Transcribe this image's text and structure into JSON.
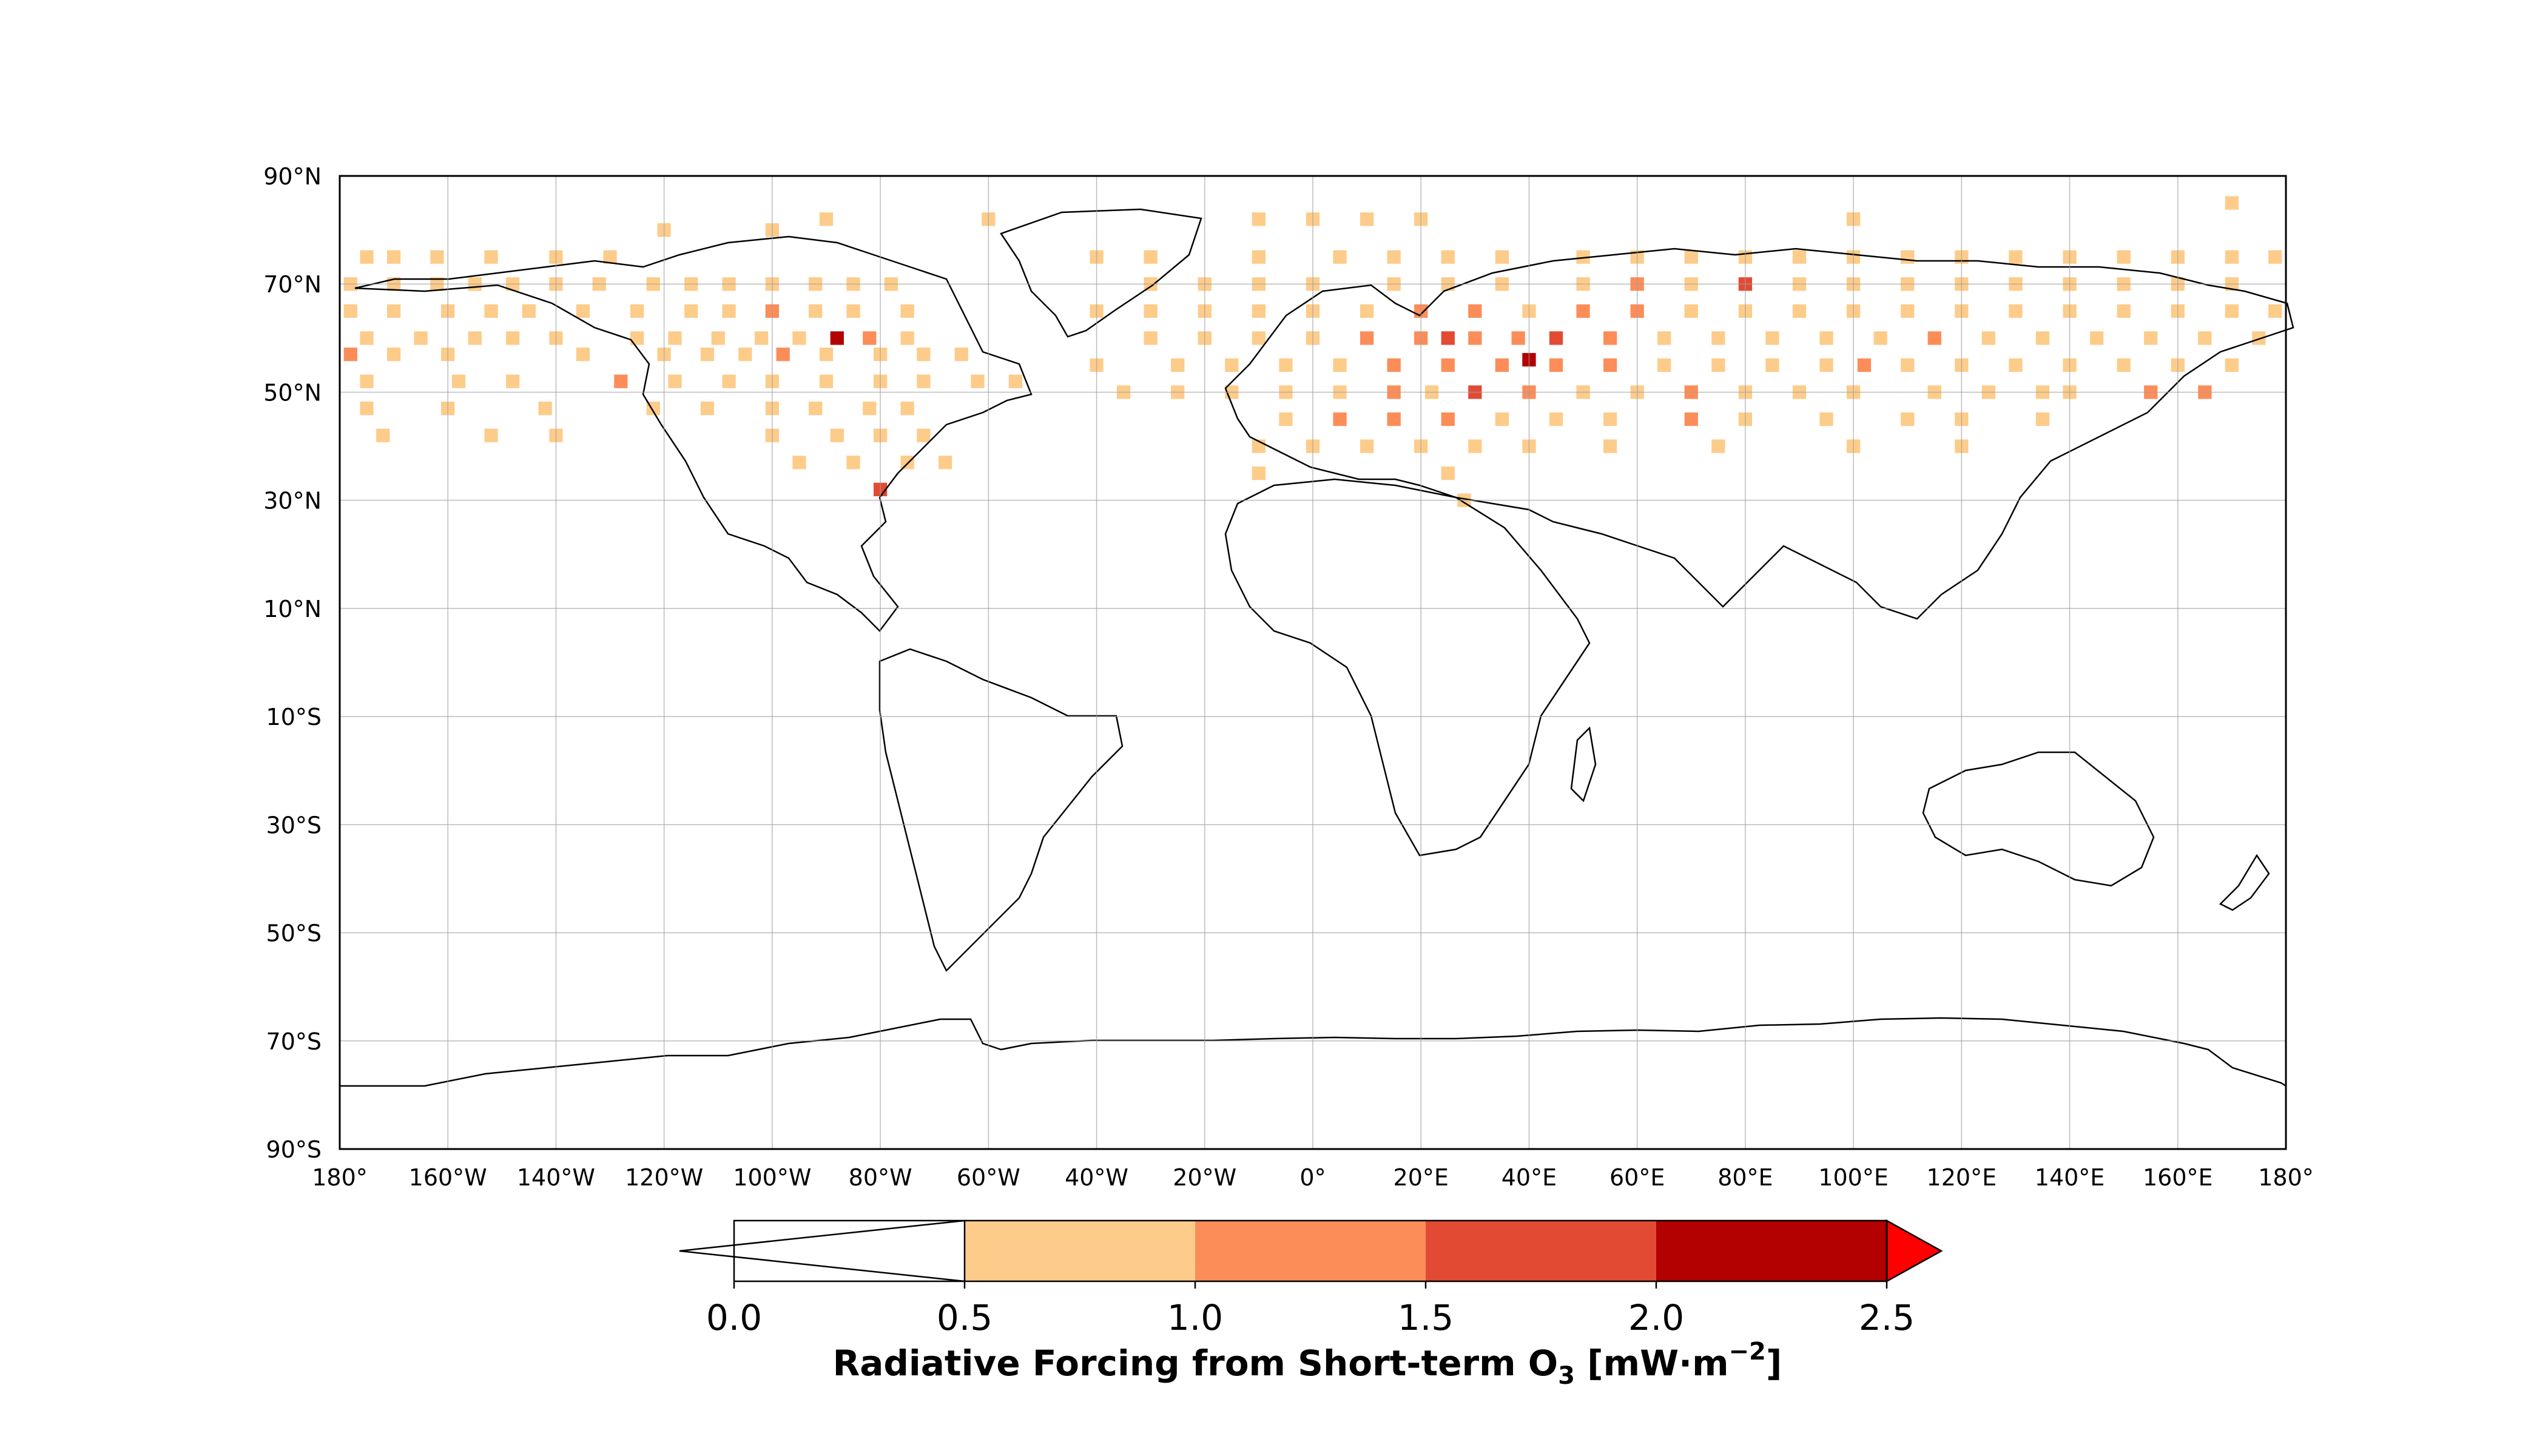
{
  "map": {
    "projection": "PlateCarree",
    "extent": {
      "lon": [
        -180,
        180
      ],
      "lat": [
        -90,
        90
      ]
    },
    "gridlines": true,
    "lat_ticks": [
      {
        "value": 90,
        "label": "90°N"
      },
      {
        "value": 70,
        "label": "70°N"
      },
      {
        "value": 50,
        "label": "50°N"
      },
      {
        "value": 30,
        "label": "30°N"
      },
      {
        "value": 10,
        "label": "10°N"
      },
      {
        "value": -10,
        "label": "10°S"
      },
      {
        "value": -30,
        "label": "30°S"
      },
      {
        "value": -50,
        "label": "50°S"
      },
      {
        "value": -70,
        "label": "70°S"
      },
      {
        "value": -90,
        "label": "90°S"
      }
    ],
    "lon_ticks": [
      {
        "value": -180,
        "label": "180°"
      },
      {
        "value": -160,
        "label": "160°W"
      },
      {
        "value": -140,
        "label": "140°W"
      },
      {
        "value": -120,
        "label": "120°W"
      },
      {
        "value": -100,
        "label": "100°W"
      },
      {
        "value": -80,
        "label": "80°W"
      },
      {
        "value": -60,
        "label": "60°W"
      },
      {
        "value": -40,
        "label": "40°W"
      },
      {
        "value": -20,
        "label": "20°W"
      },
      {
        "value": 0,
        "label": "0°"
      },
      {
        "value": 20,
        "label": "20°E"
      },
      {
        "value": 40,
        "label": "40°E"
      },
      {
        "value": 60,
        "label": "60°E"
      },
      {
        "value": 80,
        "label": "80°E"
      },
      {
        "value": 100,
        "label": "100°E"
      },
      {
        "value": 120,
        "label": "120°E"
      },
      {
        "value": 140,
        "label": "140°E"
      },
      {
        "value": 160,
        "label": "160°E"
      },
      {
        "value": 180,
        "label": "180°"
      }
    ],
    "cell_size_deg": 2.5,
    "field_cells": [
      [
        -175,
        75,
        0.7
      ],
      [
        -170,
        75,
        0.6
      ],
      [
        -162,
        75,
        0.6
      ],
      [
        -152,
        75,
        0.7
      ],
      [
        -140,
        75,
        0.7
      ],
      [
        -130,
        75,
        0.6
      ],
      [
        -178,
        70,
        0.6
      ],
      [
        -170,
        70,
        0.7
      ],
      [
        -162,
        70,
        0.6
      ],
      [
        -155,
        70,
        0.8
      ],
      [
        -148,
        70,
        0.7
      ],
      [
        -140,
        70,
        0.6
      ],
      [
        -132,
        70,
        0.6
      ],
      [
        -122,
        70,
        0.8
      ],
      [
        -115,
        70,
        0.7
      ],
      [
        -108,
        70,
        0.9
      ],
      [
        -100,
        70,
        0.7
      ],
      [
        -92,
        70,
        0.8
      ],
      [
        -85,
        70,
        0.7
      ],
      [
        -78,
        70,
        0.6
      ],
      [
        -178,
        65,
        0.6
      ],
      [
        -170,
        65,
        0.7
      ],
      [
        -160,
        65,
        0.7
      ],
      [
        -152,
        65,
        0.6
      ],
      [
        -145,
        65,
        0.8
      ],
      [
        -135,
        65,
        0.6
      ],
      [
        -125,
        65,
        0.7
      ],
      [
        -115,
        65,
        0.9
      ],
      [
        -108,
        65,
        0.8
      ],
      [
        -100,
        65,
        1.1
      ],
      [
        -92,
        65,
        0.8
      ],
      [
        -85,
        65,
        0.7
      ],
      [
        -75,
        65,
        0.6
      ],
      [
        -175,
        60,
        0.7
      ],
      [
        -165,
        60,
        0.6
      ],
      [
        -155,
        60,
        0.8
      ],
      [
        -148,
        60,
        0.6
      ],
      [
        -140,
        60,
        0.7
      ],
      [
        -125,
        60,
        0.6
      ],
      [
        -118,
        60,
        0.8
      ],
      [
        -110,
        60,
        0.7
      ],
      [
        -102,
        60,
        0.9
      ],
      [
        -95,
        60,
        0.8
      ],
      [
        -88,
        60,
        2.1
      ],
      [
        -82,
        60,
        1.3
      ],
      [
        -75,
        60,
        0.8
      ],
      [
        -178,
        57,
        1.2
      ],
      [
        -170,
        57,
        0.6
      ],
      [
        -160,
        57,
        0.6
      ],
      [
        -135,
        57,
        0.7
      ],
      [
        -120,
        57,
        0.7
      ],
      [
        -112,
        57,
        0.8
      ],
      [
        -105,
        57,
        0.8
      ],
      [
        -98,
        57,
        1.1
      ],
      [
        -90,
        57,
        0.9
      ],
      [
        -80,
        57,
        0.8
      ],
      [
        -72,
        57,
        0.7
      ],
      [
        -65,
        57,
        0.6
      ],
      [
        -175,
        52,
        0.6
      ],
      [
        -158,
        52,
        0.6
      ],
      [
        -148,
        52,
        0.7
      ],
      [
        -128,
        52,
        1.3
      ],
      [
        -118,
        52,
        0.8
      ],
      [
        -108,
        52,
        0.7
      ],
      [
        -100,
        52,
        0.8
      ],
      [
        -90,
        52,
        0.7
      ],
      [
        -80,
        52,
        0.9
      ],
      [
        -72,
        52,
        0.7
      ],
      [
        -62,
        52,
        0.6
      ],
      [
        -55,
        52,
        0.6
      ],
      [
        -175,
        47,
        0.7
      ],
      [
        -160,
        47,
        0.6
      ],
      [
        -142,
        47,
        0.6
      ],
      [
        -122,
        47,
        0.7
      ],
      [
        -112,
        47,
        0.7
      ],
      [
        -100,
        47,
        0.8
      ],
      [
        -92,
        47,
        0.8
      ],
      [
        -82,
        47,
        0.9
      ],
      [
        -75,
        47,
        0.7
      ],
      [
        -172,
        42,
        0.6
      ],
      [
        -152,
        42,
        0.6
      ],
      [
        -140,
        42,
        0.6
      ],
      [
        -100,
        42,
        0.6
      ],
      [
        -88,
        42,
        0.7
      ],
      [
        -80,
        42,
        0.8
      ],
      [
        -72,
        42,
        0.7
      ],
      [
        -95,
        37,
        0.7
      ],
      [
        -85,
        37,
        0.6
      ],
      [
        -75,
        37,
        0.7
      ],
      [
        -68,
        37,
        0.6
      ],
      [
        -80,
        32,
        1.6
      ],
      [
        -90,
        82,
        0.6
      ],
      [
        -100,
        80,
        0.6
      ],
      [
        -120,
        80,
        0.6
      ],
      [
        -60,
        82,
        0.6
      ],
      [
        -10,
        82,
        0.6
      ],
      [
        0,
        82,
        0.6
      ],
      [
        10,
        82,
        0.6
      ],
      [
        20,
        82,
        0.6
      ],
      [
        100,
        82,
        0.6
      ],
      [
        170,
        85,
        0.6
      ],
      [
        -40,
        75,
        0.6
      ],
      [
        -30,
        75,
        0.6
      ],
      [
        -10,
        75,
        0.6
      ],
      [
        5,
        75,
        0.6
      ],
      [
        15,
        75,
        0.7
      ],
      [
        25,
        75,
        0.6
      ],
      [
        35,
        75,
        0.8
      ],
      [
        50,
        75,
        0.6
      ],
      [
        60,
        75,
        0.6
      ],
      [
        70,
        75,
        0.6
      ],
      [
        80,
        75,
        0.8
      ],
      [
        90,
        75,
        0.7
      ],
      [
        100,
        75,
        0.6
      ],
      [
        110,
        75,
        0.6
      ],
      [
        120,
        75,
        0.6
      ],
      [
        130,
        75,
        0.7
      ],
      [
        140,
        75,
        0.6
      ],
      [
        150,
        75,
        0.6
      ],
      [
        160,
        75,
        0.7
      ],
      [
        170,
        75,
        0.6
      ],
      [
        178,
        75,
        0.6
      ],
      [
        -30,
        70,
        0.6
      ],
      [
        -20,
        70,
        0.7
      ],
      [
        -10,
        70,
        0.8
      ],
      [
        0,
        70,
        0.6
      ],
      [
        15,
        70,
        0.7
      ],
      [
        25,
        70,
        0.8
      ],
      [
        35,
        70,
        0.6
      ],
      [
        50,
        70,
        0.7
      ],
      [
        60,
        70,
        1.2
      ],
      [
        70,
        70,
        0.8
      ],
      [
        80,
        70,
        1.6
      ],
      [
        90,
        70,
        0.9
      ],
      [
        100,
        70,
        0.7
      ],
      [
        110,
        70,
        0.8
      ],
      [
        120,
        70,
        0.7
      ],
      [
        130,
        70,
        0.7
      ],
      [
        140,
        70,
        0.7
      ],
      [
        150,
        70,
        0.8
      ],
      [
        160,
        70,
        0.8
      ],
      [
        170,
        70,
        0.7
      ],
      [
        -40,
        65,
        0.6
      ],
      [
        -30,
        65,
        0.6
      ],
      [
        -20,
        65,
        0.7
      ],
      [
        -10,
        65,
        0.7
      ],
      [
        0,
        65,
        0.8
      ],
      [
        10,
        65,
        0.9
      ],
      [
        20,
        65,
        1.2
      ],
      [
        30,
        65,
        1.1
      ],
      [
        40,
        65,
        0.8
      ],
      [
        50,
        65,
        1.3
      ],
      [
        60,
        65,
        1.1
      ],
      [
        70,
        65,
        0.9
      ],
      [
        80,
        65,
        0.8
      ],
      [
        90,
        65,
        0.9
      ],
      [
        100,
        65,
        0.8
      ],
      [
        110,
        65,
        0.7
      ],
      [
        120,
        65,
        0.7
      ],
      [
        130,
        65,
        0.7
      ],
      [
        140,
        65,
        0.6
      ],
      [
        150,
        65,
        0.7
      ],
      [
        160,
        65,
        0.8
      ],
      [
        170,
        65,
        0.7
      ],
      [
        178,
        65,
        0.8
      ],
      [
        -30,
        60,
        0.6
      ],
      [
        -20,
        60,
        0.7
      ],
      [
        -10,
        60,
        0.6
      ],
      [
        0,
        60,
        0.8
      ],
      [
        10,
        60,
        1.1
      ],
      [
        20,
        60,
        1.3
      ],
      [
        25,
        60,
        1.6
      ],
      [
        30,
        60,
        1.2
      ],
      [
        38,
        60,
        1.3
      ],
      [
        45,
        60,
        1.6
      ],
      [
        55,
        60,
        1.4
      ],
      [
        65,
        60,
        0.9
      ],
      [
        75,
        60,
        0.8
      ],
      [
        85,
        60,
        0.9
      ],
      [
        95,
        60,
        0.8
      ],
      [
        105,
        60,
        0.7
      ],
      [
        115,
        60,
        1.1
      ],
      [
        125,
        60,
        0.8
      ],
      [
        135,
        60,
        0.7
      ],
      [
        145,
        60,
        0.7
      ],
      [
        155,
        60,
        0.7
      ],
      [
        165,
        60,
        0.8
      ],
      [
        175,
        60,
        0.8
      ],
      [
        -40,
        55,
        0.6
      ],
      [
        -25,
        55,
        0.7
      ],
      [
        -15,
        55,
        0.6
      ],
      [
        -5,
        55,
        0.9
      ],
      [
        5,
        55,
        0.9
      ],
      [
        15,
        55,
        1.2
      ],
      [
        25,
        55,
        1.4
      ],
      [
        35,
        55,
        1.2
      ],
      [
        40,
        56,
        2.1
      ],
      [
        45,
        55,
        1.1
      ],
      [
        55,
        55,
        1.0
      ],
      [
        65,
        55,
        0.8
      ],
      [
        75,
        55,
        0.9
      ],
      [
        85,
        55,
        0.8
      ],
      [
        95,
        55,
        0.9
      ],
      [
        102,
        55,
        1.1
      ],
      [
        110,
        55,
        0.8
      ],
      [
        120,
        55,
        0.7
      ],
      [
        130,
        55,
        0.7
      ],
      [
        140,
        55,
        0.8
      ],
      [
        150,
        55,
        0.7
      ],
      [
        160,
        55,
        0.7
      ],
      [
        170,
        55,
        0.8
      ],
      [
        -35,
        50,
        0.6
      ],
      [
        -25,
        50,
        0.6
      ],
      [
        -15,
        50,
        0.7
      ],
      [
        -5,
        50,
        0.8
      ],
      [
        5,
        50,
        0.9
      ],
      [
        15,
        50,
        1.1
      ],
      [
        22,
        50,
        0.9
      ],
      [
        30,
        50,
        1.6
      ],
      [
        40,
        50,
        1.1
      ],
      [
        50,
        50,
        0.9
      ],
      [
        60,
        50,
        0.8
      ],
      [
        70,
        50,
        1.2
      ],
      [
        80,
        50,
        0.7
      ],
      [
        90,
        50,
        0.8
      ],
      [
        100,
        50,
        0.7
      ],
      [
        115,
        50,
        0.9
      ],
      [
        125,
        50,
        0.7
      ],
      [
        135,
        50,
        0.7
      ],
      [
        140,
        50,
        0.6
      ],
      [
        155,
        50,
        1.1
      ],
      [
        165,
        50,
        1.1
      ],
      [
        -5,
        45,
        0.9
      ],
      [
        5,
        45,
        1.1
      ],
      [
        15,
        45,
        1.0
      ],
      [
        25,
        45,
        1.1
      ],
      [
        35,
        45,
        0.8
      ],
      [
        45,
        45,
        0.8
      ],
      [
        55,
        45,
        0.7
      ],
      [
        70,
        45,
        1.3
      ],
      [
        80,
        45,
        0.6
      ],
      [
        95,
        45,
        0.7
      ],
      [
        110,
        45,
        0.6
      ],
      [
        120,
        45,
        0.7
      ],
      [
        135,
        45,
        0.6
      ],
      [
        -10,
        40,
        0.6
      ],
      [
        0,
        40,
        0.6
      ],
      [
        10,
        40,
        0.7
      ],
      [
        20,
        40,
        0.8
      ],
      [
        30,
        40,
        0.7
      ],
      [
        40,
        40,
        0.6
      ],
      [
        55,
        40,
        0.6
      ],
      [
        75,
        40,
        0.6
      ],
      [
        100,
        40,
        0.6
      ],
      [
        120,
        40,
        0.6
      ],
      [
        -10,
        35,
        0.6
      ],
      [
        25,
        35,
        0.6
      ],
      [
        28,
        30,
        0.6
      ]
    ]
  },
  "colorbar": {
    "levels": [
      0.0,
      0.5,
      1.0,
      1.5,
      2.0,
      2.5
    ],
    "tick_labels": [
      "0.0",
      "0.5",
      "1.0",
      "1.5",
      "2.0",
      "2.5"
    ],
    "colors": [
      "#ffffff",
      "#fdcc8a",
      "#fc8d59",
      "#e34a33",
      "#b30000"
    ],
    "under_color": "#ffffff",
    "over_color": "#ff0000",
    "extend": "both",
    "title_main": "Radiative Forcing from Short-term O",
    "title_sub": "3",
    "title_unit_start": " [mW·m",
    "title_sup": "−2",
    "title_end": "]"
  }
}
